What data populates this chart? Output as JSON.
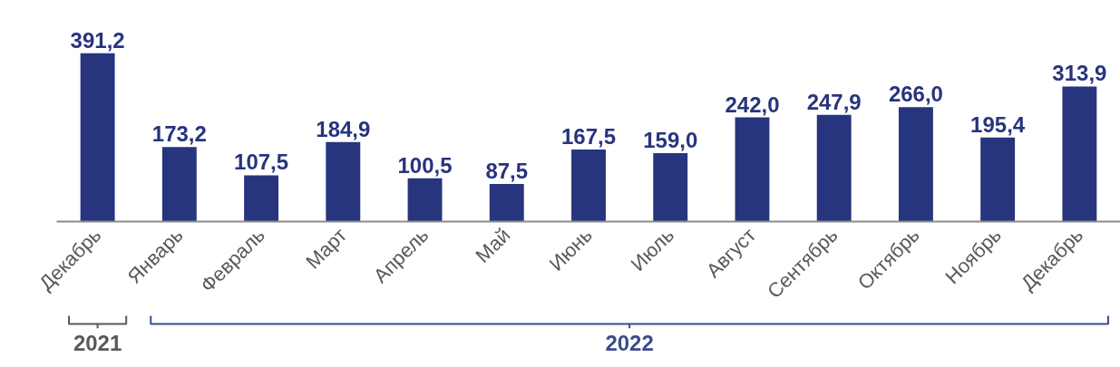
{
  "chart_data": {
    "type": "bar",
    "categories": [
      "Декабрь",
      "Январь",
      "Февраль",
      "Март",
      "Апрель",
      "Май",
      "Июнь",
      "Июль",
      "Август",
      "Сентябрь",
      "Октябрь",
      "Ноябрь",
      "Декабрь"
    ],
    "values": [
      391.2,
      173.2,
      107.5,
      184.9,
      100.5,
      87.5,
      167.5,
      159.0,
      242.0,
      247.9,
      266.0,
      195.4,
      313.9
    ],
    "value_labels": [
      "391,2",
      "173,2",
      "107,5",
      "184,9",
      "100,5",
      "87,5",
      "167,5",
      "159,0",
      "242,0",
      "247,9",
      "266,0",
      "195,4",
      "313,9"
    ],
    "color": "#27347e",
    "tick_labels": "x",
    "grid": false,
    "annotations": [
      "2021",
      "2022"
    ]
  }
}
